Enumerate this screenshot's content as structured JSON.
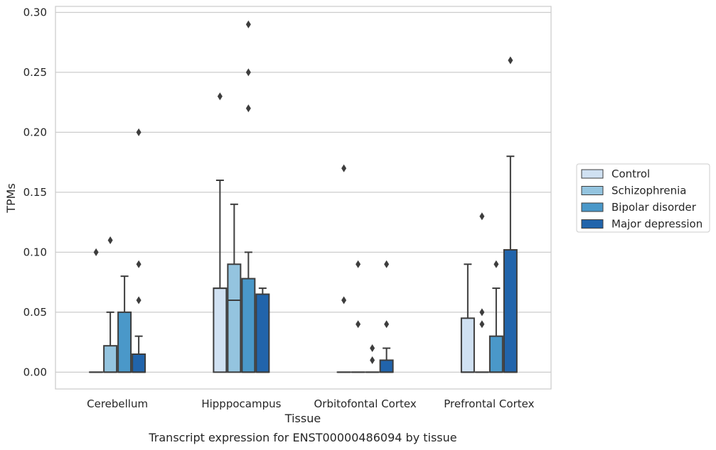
{
  "caption": "Transcript expression for ENST00000486094 by tissue",
  "chart_data": {
    "type": "boxplot",
    "xlabel": "Tissue",
    "ylabel": "TPMs",
    "ylim": [
      -0.014,
      0.305
    ],
    "yticks": [
      "0.00",
      "0.05",
      "0.10",
      "0.15",
      "0.20",
      "0.25",
      "0.30"
    ],
    "grid": true,
    "legend_position": "right",
    "colors": [
      "#d0e1f2",
      "#94c4df",
      "#4a98c9",
      "#2164ab"
    ],
    "edge_color": "#3d3d3d",
    "categories": [
      "Cerebellum",
      "Hipppocampus",
      "Orbitofontal Cortex",
      "Prefrontal Cortex"
    ],
    "series": [
      {
        "name": "Control",
        "boxes": [
          {
            "q1": 0.0,
            "median": 0.0,
            "q3": 0.0,
            "whisker_low": 0.0,
            "whisker_high": 0.0,
            "outliers": [
              0.1
            ]
          },
          {
            "q1": 0.0,
            "median": 0.07,
            "q3": 0.07,
            "whisker_low": 0.0,
            "whisker_high": 0.16,
            "outliers": [
              0.23
            ]
          },
          {
            "q1": 0.0,
            "median": 0.0,
            "q3": 0.0,
            "whisker_low": 0.0,
            "whisker_high": 0.0,
            "outliers": [
              0.06,
              0.17
            ]
          },
          {
            "q1": 0.0,
            "median": 0.0,
            "q3": 0.045,
            "whisker_low": 0.0,
            "whisker_high": 0.09,
            "outliers": []
          }
        ]
      },
      {
        "name": "Schizophrenia",
        "boxes": [
          {
            "q1": 0.0,
            "median": 0.0,
            "q3": 0.022,
            "whisker_low": 0.0,
            "whisker_high": 0.05,
            "outliers": [
              0.11
            ]
          },
          {
            "q1": 0.0,
            "median": 0.06,
            "q3": 0.09,
            "whisker_low": 0.0,
            "whisker_high": 0.14,
            "outliers": []
          },
          {
            "q1": 0.0,
            "median": 0.0,
            "q3": 0.0,
            "whisker_low": 0.0,
            "whisker_high": 0.0,
            "outliers": [
              0.04,
              0.09
            ]
          },
          {
            "q1": 0.0,
            "median": 0.0,
            "q3": 0.0,
            "whisker_low": 0.0,
            "whisker_high": 0.0,
            "outliers": [
              0.04,
              0.05,
              0.13
            ]
          }
        ]
      },
      {
        "name": "Bipolar disorder",
        "boxes": [
          {
            "q1": 0.0,
            "median": 0.0,
            "q3": 0.05,
            "whisker_low": 0.0,
            "whisker_high": 0.08,
            "outliers": []
          },
          {
            "q1": 0.0,
            "median": 0.0,
            "q3": 0.078,
            "whisker_low": 0.0,
            "whisker_high": 0.1,
            "outliers": [
              0.22,
              0.25,
              0.29
            ]
          },
          {
            "q1": 0.0,
            "median": 0.0,
            "q3": 0.0,
            "whisker_low": 0.0,
            "whisker_high": 0.0,
            "outliers": [
              0.01,
              0.02
            ]
          },
          {
            "q1": 0.0,
            "median": 0.0,
            "q3": 0.03,
            "whisker_low": 0.0,
            "whisker_high": 0.07,
            "outliers": [
              0.09
            ]
          }
        ]
      },
      {
        "name": "Major depression",
        "boxes": [
          {
            "q1": 0.0,
            "median": 0.0,
            "q3": 0.015,
            "whisker_low": 0.0,
            "whisker_high": 0.03,
            "outliers": [
              0.06,
              0.09,
              0.2
            ]
          },
          {
            "q1": 0.0,
            "median": 0.0,
            "q3": 0.065,
            "whisker_low": 0.0,
            "whisker_high": 0.07,
            "outliers": []
          },
          {
            "q1": 0.0,
            "median": 0.0,
            "q3": 0.01,
            "whisker_low": 0.0,
            "whisker_high": 0.02,
            "outliers": [
              0.04,
              0.09
            ]
          },
          {
            "q1": 0.0,
            "median": 0.0,
            "q3": 0.102,
            "whisker_low": 0.0,
            "whisker_high": 0.18,
            "outliers": [
              0.26
            ]
          }
        ]
      }
    ]
  }
}
